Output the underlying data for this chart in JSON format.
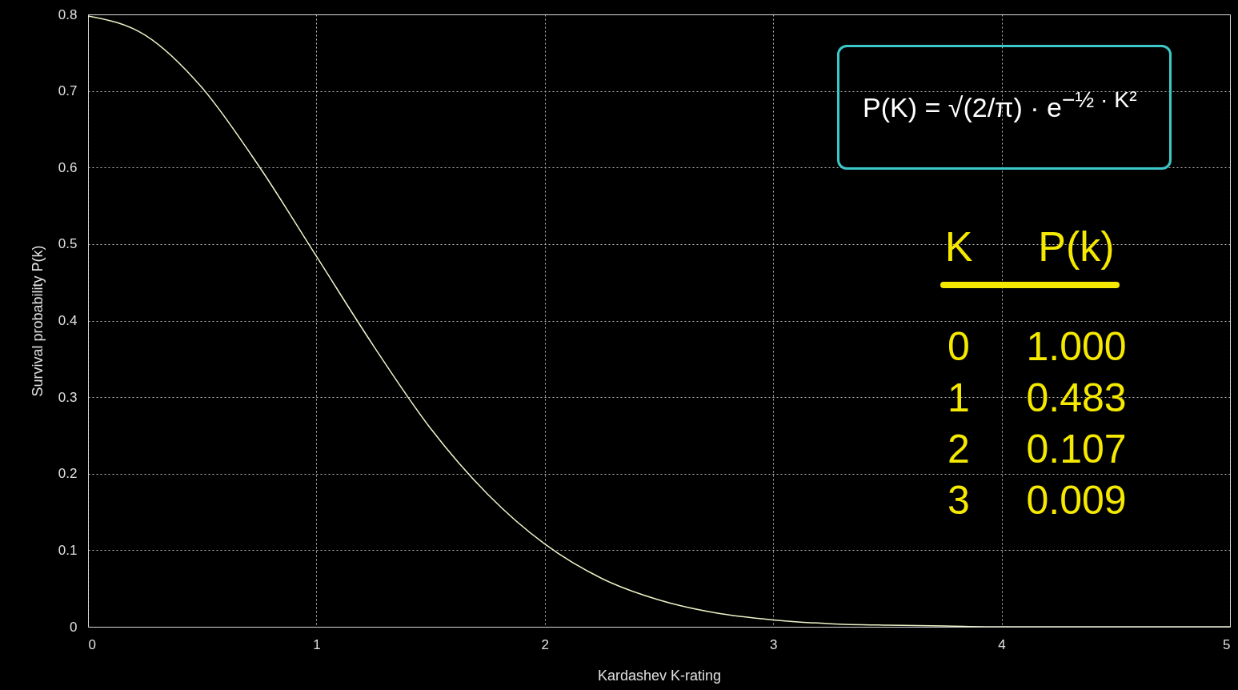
{
  "chart_data": {
    "type": "line",
    "xlabel": "Kardashev K-rating",
    "ylabel": "Survival probability P(k)",
    "x": [
      0,
      0.25,
      0.5,
      0.75,
      1,
      1.25,
      1.5,
      1.75,
      2,
      2.25,
      2.5,
      2.75,
      3,
      3.25,
      3.5,
      3.75,
      4,
      4.5,
      5
    ],
    "series": [
      {
        "color": "#eaf5c8",
        "values": [
          0.798,
          0.773,
          0.704,
          0.601,
          0.484,
          0.367,
          0.259,
          0.173,
          0.108,
          0.063,
          0.035,
          0.018,
          0.009,
          0.004,
          0.002,
          0.001,
          0,
          0,
          0
        ]
      }
    ],
    "xlim": [
      0,
      5
    ],
    "xticks": [
      0,
      1,
      2,
      3,
      4,
      5
    ],
    "ylim": [
      0,
      0.8
    ],
    "yticks": [
      0,
      0.1,
      0.2,
      0.3,
      0.4,
      0.5,
      0.6,
      0.7,
      0.8
    ],
    "grid": true,
    "marker": "none",
    "line_style": "solid",
    "annotations": [
      "P(K) = √(2/π) · e$^{−½ · K²}$",
      "K",
      "P(k)",
      "0",
      "1.000",
      "1",
      "0.483",
      "2",
      "0.107",
      "3",
      "0.009"
    ]
  }
}
